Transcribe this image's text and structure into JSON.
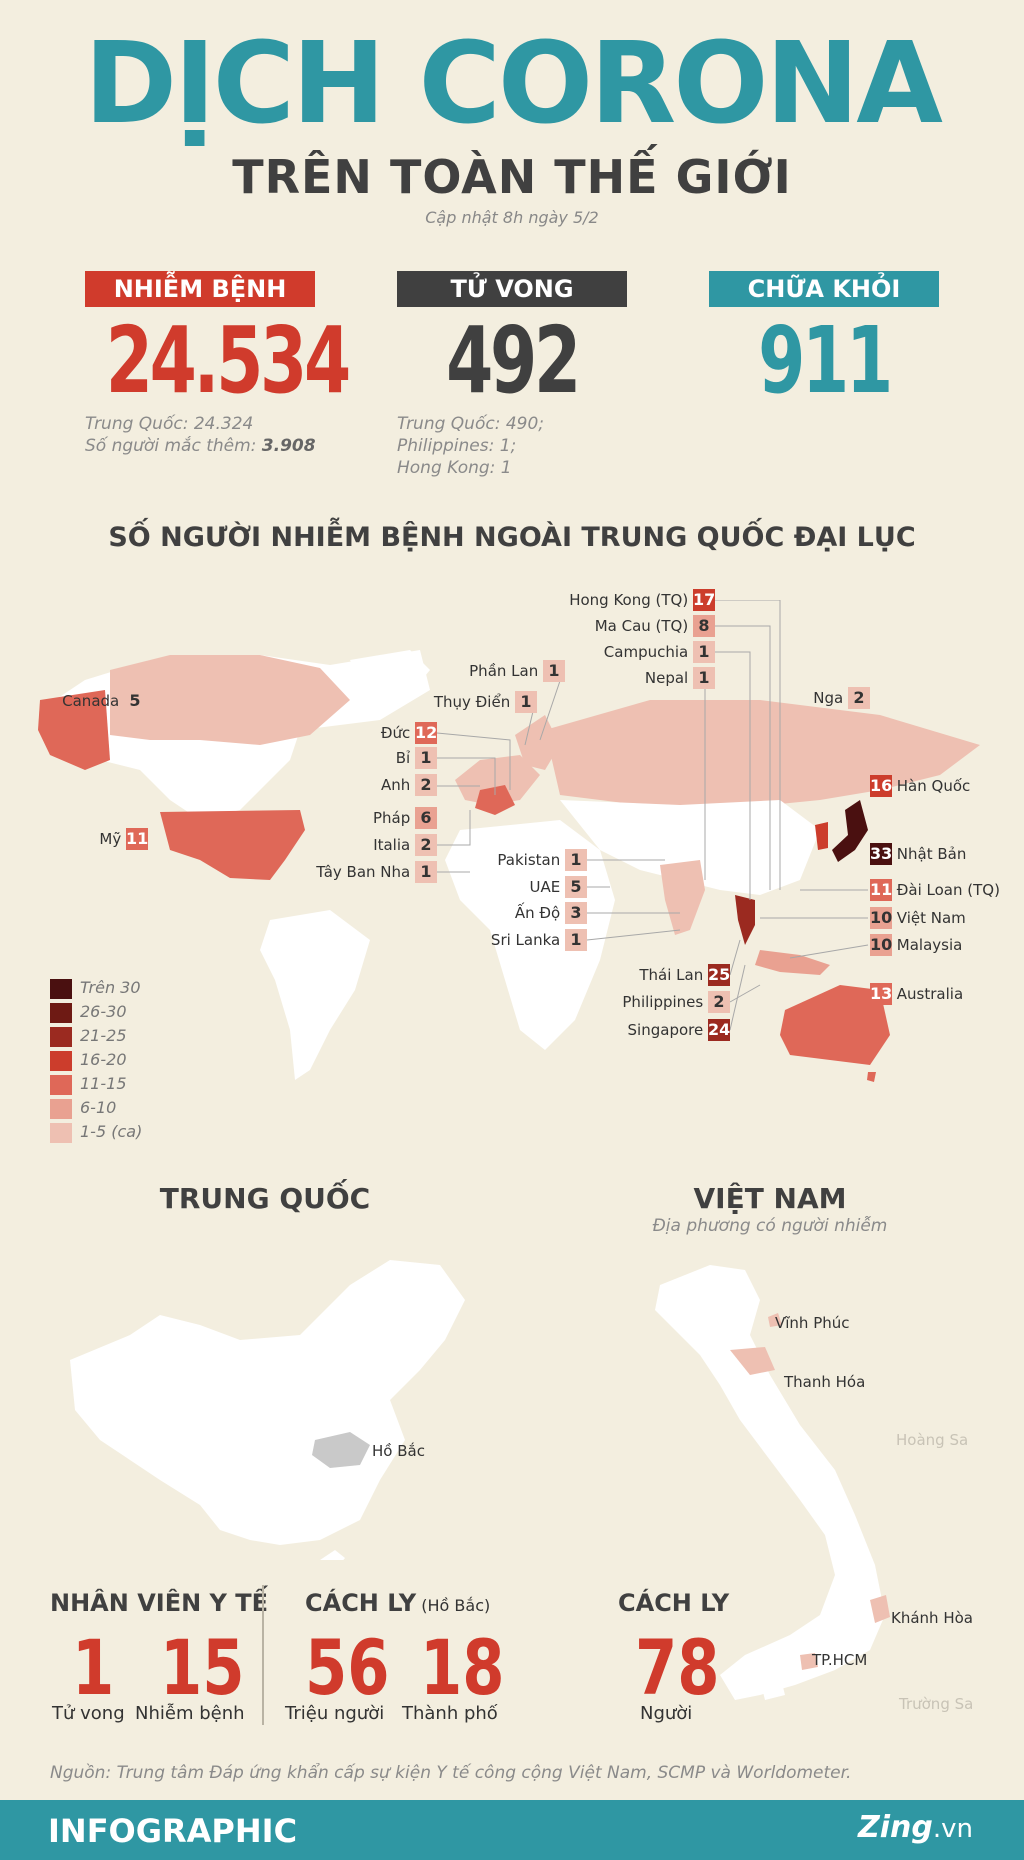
{
  "header": {
    "title": "DỊCH CORONA",
    "subtitle": "TRÊN TOÀN THẾ GIỚI",
    "updated": "Cập nhật 8h ngày 5/2"
  },
  "stats": {
    "infected": {
      "label": "NHIỄM BỆNH",
      "value": "24.534",
      "color": "#d03b2c",
      "note1_label": "Trung Quốc:",
      "note1_value": "24.324",
      "note2_label": "Số người mắc thêm:",
      "note2_value": "3.908"
    },
    "deaths": {
      "label": "TỬ VONG",
      "value": "492",
      "color": "#404040",
      "note1": "Trung Quốc: 490;",
      "note2": "Philippines: 1;",
      "note3": "Hong Kong: 1"
    },
    "recovered": {
      "label": "CHỮA KHỎI",
      "value": "911",
      "color": "#2f97a3"
    }
  },
  "world": {
    "section_title": "SỐ NGƯỜI NHIỄM BỆNH NGOÀI TRUNG QUỐC ĐẠI LỤC",
    "countries": {
      "hongkong": {
        "name": "Hong Kong (TQ)",
        "value": "17"
      },
      "macau": {
        "name": "Ma Cau (TQ)",
        "value": "8"
      },
      "cambodia": {
        "name": "Campuchia",
        "value": "1"
      },
      "nepal": {
        "name": "Nepal",
        "value": "1"
      },
      "finland": {
        "name": "Phần Lan",
        "value": "1"
      },
      "sweden": {
        "name": "Thụy Điển",
        "value": "1"
      },
      "canada": {
        "name": "Canada",
        "value": "5"
      },
      "russia": {
        "name": "Nga",
        "value": "2"
      },
      "germany": {
        "name": "Đức",
        "value": "12"
      },
      "belgium": {
        "name": "Bỉ",
        "value": "1"
      },
      "uk": {
        "name": "Anh",
        "value": "2"
      },
      "korea": {
        "name": "Hàn Quốc",
        "value": "16"
      },
      "usa": {
        "name": "Mỹ",
        "value": "11"
      },
      "france": {
        "name": "Pháp",
        "value": "6"
      },
      "italy": {
        "name": "Italia",
        "value": "2"
      },
      "spain": {
        "name": "Tây Ban Nha",
        "value": "1"
      },
      "japan": {
        "name": "Nhật Bản",
        "value": "33"
      },
      "pakistan": {
        "name": "Pakistan",
        "value": "1"
      },
      "uae": {
        "name": "UAE",
        "value": "5"
      },
      "india": {
        "name": "Ấn Độ",
        "value": "3"
      },
      "srilanka": {
        "name": "Sri Lanka",
        "value": "1"
      },
      "taiwan": {
        "name": "Đài Loan (TQ)",
        "value": "11"
      },
      "vietnam": {
        "name": "Việt Nam",
        "value": "10"
      },
      "malaysia": {
        "name": "Malaysia",
        "value": "10"
      },
      "thailand": {
        "name": "Thái Lan",
        "value": "25"
      },
      "philippines": {
        "name": "Philippines",
        "value": "2"
      },
      "singapore": {
        "name": "Singapore",
        "value": "24"
      },
      "australia": {
        "name": "Australia",
        "value": "13"
      }
    },
    "legend": [
      {
        "label": "Trên 30",
        "color": "#4a1010"
      },
      {
        "label": "26-30",
        "color": "#6e1a14"
      },
      {
        "label": "21-25",
        "color": "#9b2a20"
      },
      {
        "label": "16-20",
        "color": "#cc3d2c"
      },
      {
        "label": "11-15",
        "color": "#df6858"
      },
      {
        "label": "6-10",
        "color": "#e9a191"
      },
      {
        "label": "1-5 (ca)",
        "color": "#eec0b2"
      }
    ]
  },
  "china": {
    "title": "TRUNG QUỐC",
    "hubei": "Hồ Bắc"
  },
  "vietnam": {
    "title": "VIỆT NAM",
    "subtitle": "Địa phương có người nhiễm",
    "vinhphuc": "Vĩnh Phúc",
    "thanhhoa": "Thanh Hóa",
    "hoangsa": "Hoàng Sa",
    "khanhhoa": "Khánh Hòa",
    "tphcm": "TP.HCM",
    "truongsa": "Trường Sa"
  },
  "bottom": {
    "medical": {
      "title": "NHÂN VIÊN Y TẾ",
      "n1": "1",
      "l1": "Tử vong",
      "n2": "15",
      "l2": "Nhiễm bệnh"
    },
    "quarantine": {
      "title": "CÁCH LY",
      "title_sub": "(Hồ Bắc)",
      "n1": "56",
      "l1": "Triệu người",
      "n2": "18",
      "l2": "Thành phố"
    },
    "vn_quarantine": {
      "title": "CÁCH LY",
      "n1": "78",
      "l1": "Người"
    }
  },
  "source": "Nguồn: Trung tâm Đáp ứng khẩn cấp sự kiện Y tế công cộng Việt Nam, SCMP và Worldometer.",
  "footer": {
    "left": "INFOGRAPHIC",
    "brand": "Zing",
    "brand_suffix": ".vn"
  }
}
